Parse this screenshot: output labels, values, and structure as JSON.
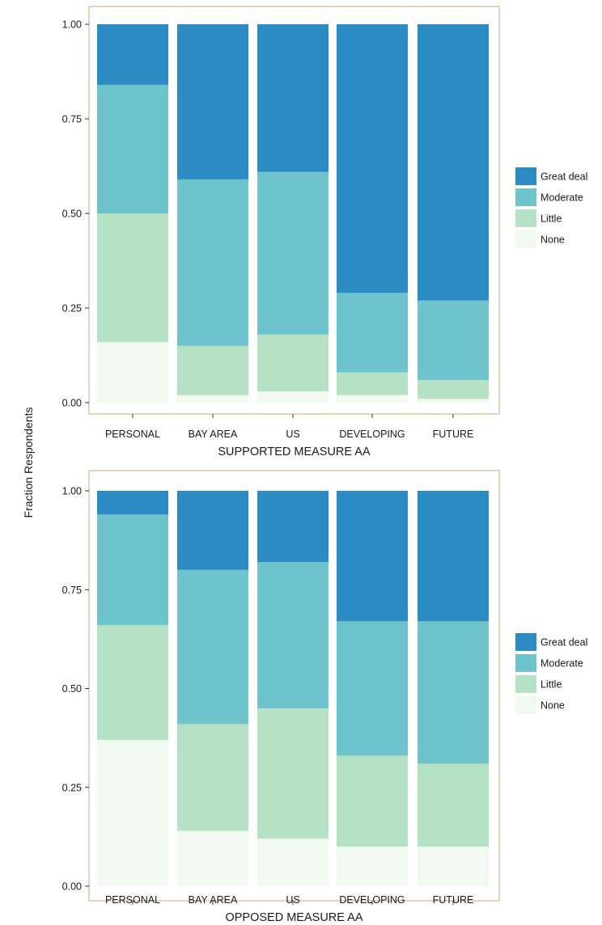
{
  "y_axis_label": "Fraction Respondents",
  "colors": {
    "Great deal": "#2b8cc4",
    "Moderate": "#6ec3cc",
    "Little": "#b5e2c4",
    "None": "#f1f9f0",
    "panel_border": "#d9b48a"
  },
  "chart_data": [
    {
      "type": "bar",
      "stacked": true,
      "title": "",
      "xlabel": "SUPPORTED MEASURE AA",
      "ylabel": "Fraction Respondents",
      "ylim": [
        0,
        1
      ],
      "yticks": [
        "0.00",
        "0.25",
        "0.50",
        "0.75",
        "1.00"
      ],
      "categories": [
        "PERSONAL",
        "BAY AREA",
        "US",
        "DEVELOPING",
        "FUTURE"
      ],
      "legend": {
        "position": "right",
        "entries": [
          "Great deal",
          "Moderate",
          "Little",
          "None"
        ]
      },
      "series": [
        {
          "name": "None",
          "values": [
            0.16,
            0.02,
            0.03,
            0.02,
            0.01
          ]
        },
        {
          "name": "Little",
          "values": [
            0.34,
            0.13,
            0.15,
            0.06,
            0.05
          ]
        },
        {
          "name": "Moderate",
          "values": [
            0.34,
            0.44,
            0.43,
            0.21,
            0.21
          ]
        },
        {
          "name": "Great deal",
          "values": [
            0.16,
            0.41,
            0.39,
            0.71,
            0.73
          ]
        }
      ]
    },
    {
      "type": "bar",
      "stacked": true,
      "title": "",
      "xlabel": "OPPOSED MEASURE AA",
      "ylabel": "Fraction Respondents",
      "ylim": [
        0,
        1
      ],
      "yticks": [
        "0.00",
        "0.25",
        "0.50",
        "0.75",
        "1.00"
      ],
      "categories": [
        "PERSONAL",
        "BAY AREA",
        "US",
        "DEVELOPING",
        "FUTURE"
      ],
      "legend": {
        "position": "right",
        "entries": [
          "Great deal",
          "Moderate",
          "Little",
          "None"
        ]
      },
      "series": [
        {
          "name": "None",
          "values": [
            0.37,
            0.14,
            0.12,
            0.1,
            0.1
          ]
        },
        {
          "name": "Little",
          "values": [
            0.29,
            0.27,
            0.33,
            0.23,
            0.21
          ]
        },
        {
          "name": "Moderate",
          "values": [
            0.28,
            0.39,
            0.37,
            0.34,
            0.36
          ]
        },
        {
          "name": "Great deal",
          "values": [
            0.06,
            0.2,
            0.18,
            0.33,
            0.33
          ]
        }
      ]
    }
  ]
}
